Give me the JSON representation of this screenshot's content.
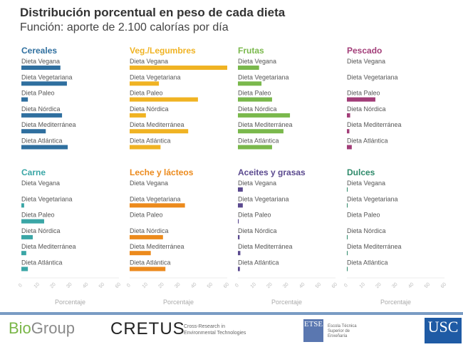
{
  "title": "Distribución porcentual en peso de cada dieta",
  "subtitle": "Función: aporte de 2.100 calorías por día",
  "chart_data": {
    "type": "bar",
    "orientation": "horizontal",
    "layout": "small-multiples 2x4",
    "categories": [
      "Dieta Vegana",
      "Dieta Vegetariana",
      "Dieta Paleo",
      "Dieta Nórdica",
      "Dieta Mediterránea",
      "Dieta Atlántica"
    ],
    "xlabel": "Porcentaje",
    "xlim": [
      0,
      60
    ],
    "xticks": [
      "0",
      "10",
      "20",
      "30",
      "40",
      "50",
      "60"
    ],
    "panels": [
      {
        "title": "Cereales",
        "color": "#2f6f9f",
        "values": [
          24,
          28,
          4,
          25,
          15,
          28.5
        ]
      },
      {
        "title": "Veg./Legumbres",
        "color": "#f0b323",
        "values": [
          60,
          18,
          42,
          10,
          36,
          19
        ]
      },
      {
        "title": "Frutas",
        "color": "#7ab84c",
        "values": [
          13,
          14.5,
          21,
          32,
          28,
          21
        ]
      },
      {
        "title": "Pescado",
        "color": "#a23d78",
        "values": [
          0,
          0,
          17.5,
          2,
          1.5,
          3
        ]
      },
      {
        "title": "Carne",
        "color": "#3aa6a6",
        "values": [
          0,
          1.7,
          14,
          7,
          3,
          4
        ]
      },
      {
        "title": "Leche y lácteos",
        "color": "#ec8a1c",
        "values": [
          0,
          34,
          0,
          20.5,
          13,
          22
        ]
      },
      {
        "title": "Aceites y grasas",
        "color": "#5b4a8f",
        "values": [
          3,
          3,
          0.5,
          1,
          1.5,
          1.2
        ]
      },
      {
        "title": "Dulces",
        "color": "#2e8a6a",
        "values": [
          0.3,
          0.3,
          0,
          0.3,
          0.3,
          0.3
        ]
      }
    ]
  },
  "footer": {
    "biogroup": {
      "bio": "Bio",
      "group": "Group"
    },
    "cretus": "CRETUS",
    "cretus_sub": "Cross-Research in Environmental Technologies",
    "etse": "ETSE",
    "etse_sub": "Escola Técnica Superior de Enxeñaría",
    "usc": "USC"
  }
}
